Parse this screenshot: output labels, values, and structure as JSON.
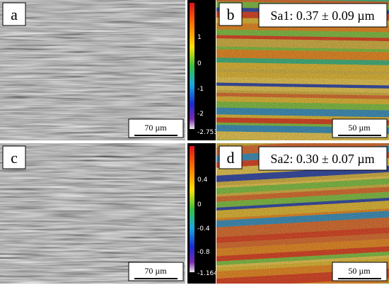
{
  "panels": [
    {
      "label": "a",
      "scale_bar": "70 µm"
    },
    {
      "label": "b",
      "scale_bar": "50 µm",
      "roughness": "Sa1: 0.37 ± 0.09 µm",
      "colorbar_ticks": [
        "1",
        "0",
        "-1",
        "-2",
        "-2.753"
      ]
    },
    {
      "label": "c",
      "scale_bar": "70 µm"
    },
    {
      "label": "d",
      "scale_bar": "50 µm",
      "roughness": "Sa2: 0.30 ± 0.07 µm",
      "colorbar_ticks": [
        "0.4",
        "0",
        "-0.4",
        "-0.8",
        "-1.164"
      ]
    }
  ]
}
